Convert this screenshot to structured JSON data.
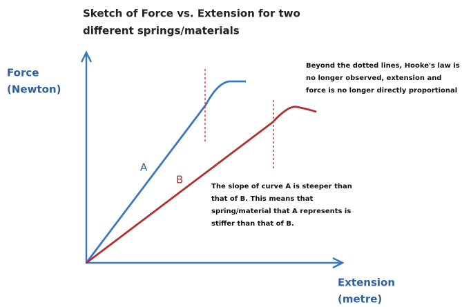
{
  "title": [
    "Sketch of Force vs. Extension for two",
    "different springs/materials"
  ],
  "y_axis_label": [
    "Force",
    "(Newton)"
  ],
  "x_axis_label": [
    "Extension",
    "(metre)"
  ],
  "curves": [
    {
      "label": "A"
    },
    {
      "label": "B"
    }
  ],
  "annotations": [
    [
      "Beyond the dotted lines, Hooke's law is",
      "no longer observed, extension and",
      "force is no longer directly proportional"
    ],
    [
      "The slope of curve A is steeper than",
      "that of B. This means that",
      "spring/material that A represents is",
      "stiffer than that of B."
    ]
  ]
}
